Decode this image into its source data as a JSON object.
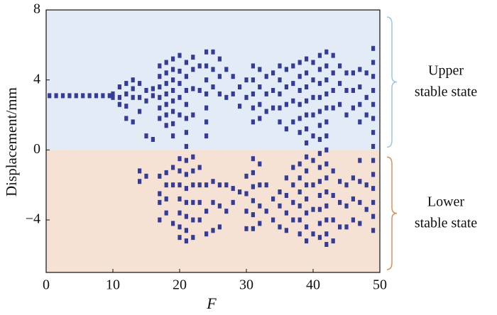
{
  "chart_data": {
    "type": "scatter",
    "xlabel": "F",
    "ylabel": "Displacement/mm",
    "xlim": [
      0,
      50
    ],
    "ylim": [
      -7,
      8
    ],
    "xticks": [
      0,
      10,
      20,
      30,
      40,
      50
    ],
    "yticks": [
      8,
      4,
      0,
      {
        "value": -4,
        "label": "−4"
      }
    ],
    "grid": false,
    "color": "#343c96",
    "upper_region_color": "#e3ebf6",
    "lower_region_color": "#f6e1d5",
    "annotations": [
      {
        "lines": [
          "Upper",
          "stable state"
        ],
        "color": "#9cc6e6"
      },
      {
        "lines": [
          "Lower",
          "stable state"
        ],
        "color": "#d9905e"
      }
    ],
    "x": [
      0.5,
      1.5,
      2.5,
      3.5,
      4.5,
      5.5,
      6.5,
      7.5,
      8.5,
      9.5,
      10,
      10,
      11,
      11,
      11,
      12,
      12,
      12,
      12,
      13,
      13,
      13,
      13,
      14,
      14,
      14,
      14,
      14,
      15,
      15,
      15,
      15,
      16,
      16,
      16,
      17,
      17,
      17,
      17,
      17,
      17,
      17,
      17,
      17,
      17,
      18,
      18,
      18,
      18,
      18,
      18,
      18,
      18,
      18,
      18,
      18,
      19,
      19,
      19,
      19,
      19,
      19,
      19,
      19,
      19,
      19,
      19,
      20,
      20,
      20,
      20,
      20,
      20,
      20,
      20,
      20,
      20,
      20,
      20,
      21,
      21,
      21,
      21,
      21,
      21,
      21,
      21,
      21,
      21,
      21,
      21,
      21,
      21,
      22,
      22,
      22,
      22,
      22,
      22,
      22,
      22,
      22,
      22,
      23,
      23,
      23,
      23,
      23,
      23,
      24,
      24,
      24,
      24,
      24,
      24,
      24,
      24,
      24,
      24,
      25,
      25,
      25,
      25,
      25,
      25,
      26,
      26,
      26,
      26,
      26,
      26,
      27,
      27,
      27,
      27,
      28,
      28,
      28,
      28,
      29,
      29,
      29,
      30,
      30,
      30,
      30,
      30,
      30,
      31,
      31,
      31,
      31,
      31,
      31,
      31,
      31,
      31,
      31,
      31,
      32,
      32,
      32,
      32,
      32,
      32,
      32,
      32,
      33,
      33,
      33,
      33,
      33,
      34,
      34,
      34,
      34,
      34,
      35,
      35,
      35,
      35,
      35,
      35,
      35,
      35,
      36,
      36,
      36,
      36,
      36,
      36,
      36,
      36,
      37,
      37,
      37,
      37,
      37,
      37,
      37,
      37,
      38,
      38,
      38,
      38,
      38,
      38,
      38,
      38,
      38,
      38,
      38,
      38,
      39,
      39,
      39,
      39,
      39,
      39,
      39,
      39,
      39,
      39,
      39,
      39,
      39,
      39,
      40,
      40,
      40,
      40,
      40,
      40,
      40,
      40,
      40,
      41,
      41,
      41,
      41,
      41,
      41,
      41,
      41,
      41,
      41,
      41,
      41,
      41,
      41,
      42,
      42,
      42,
      42,
      42,
      42,
      42,
      42,
      42,
      42,
      42,
      42,
      42,
      42,
      42,
      43,
      43,
      43,
      43,
      43,
      43,
      43,
      43,
      44,
      44,
      44,
      44,
      44,
      44,
      45,
      45,
      45,
      45,
      45,
      45,
      46,
      46,
      46,
      46,
      46,
      46,
      47,
      47,
      47,
      47,
      47,
      47,
      47,
      47,
      48,
      48,
      48,
      48,
      48,
      49,
      49,
      49,
      49,
      49,
      49,
      49,
      49,
      49,
      49,
      49,
      49,
      49,
      49
    ],
    "values": [
      3.1,
      3.1,
      3.1,
      3.1,
      3.1,
      3.1,
      3.1,
      3.1,
      3.1,
      3.1,
      3.2,
      3.0,
      3.6,
      3.0,
      2.6,
      3.8,
      3.2,
      2.5,
      1.8,
      4.0,
      3.5,
      3.0,
      1.6,
      3.8,
      3.0,
      2.2,
      -1.2,
      -1.8,
      3.4,
      2.8,
      0.8,
      -1.5,
      3.5,
      3.1,
      0.6,
      4.8,
      4.2,
      3.6,
      3.0,
      2.4,
      1.8,
      -1.5,
      -2.5,
      -3.0,
      -4.0,
      5.0,
      4.4,
      3.8,
      3.2,
      2.6,
      2.0,
      1.4,
      -1.3,
      -2.0,
      -2.8,
      -3.6,
      5.2,
      4.6,
      4.0,
      3.4,
      2.8,
      2.2,
      1.5,
      0.8,
      -1.0,
      -2.0,
      -4.2,
      5.4,
      4.5,
      3.8,
      3.0,
      2.0,
      -0.5,
      -1.2,
      -2.0,
      -2.8,
      -3.6,
      -4.4,
      -5.0,
      5.0,
      4.2,
      3.4,
      2.6,
      1.8,
      1.0,
      0.2,
      -0.6,
      -1.4,
      -2.2,
      -3.0,
      -3.8,
      -4.6,
      -5.2,
      5.3,
      4.6,
      3.5,
      2.0,
      -0.4,
      -1.2,
      -2.0,
      -3.0,
      -4.0,
      -5.0,
      4.8,
      3.4,
      -1.0,
      -2.0,
      -3.0,
      -4.0,
      5.6,
      4.8,
      4.0,
      3.2,
      2.4,
      1.6,
      0.8,
      -2.0,
      -3.5,
      -4.8,
      5.6,
      4.6,
      3.6,
      -1.8,
      -3.0,
      -4.6,
      5.2,
      4.2,
      3.2,
      -2.0,
      -3.2,
      -4.4,
      4.6,
      3.0,
      -2.0,
      -3.5,
      4.2,
      3.2,
      -2.2,
      -3.0,
      3.6,
      2.5,
      -2.4,
      4.0,
      3.0,
      -1.5,
      -2.5,
      -3.5,
      -4.5,
      4.8,
      4.0,
      3.2,
      2.4,
      1.6,
      -0.5,
      -1.3,
      -2.1,
      -2.9,
      -3.7,
      -4.5,
      4.6,
      3.6,
      2.6,
      1.8,
      -0.8,
      -2.0,
      -3.2,
      -4.2,
      4.2,
      3.2,
      2.2,
      -2.0,
      -3.5,
      4.4,
      3.4,
      2.4,
      -2.8,
      -4.0,
      4.8,
      4.0,
      3.2,
      2.4,
      1.6,
      -2.4,
      -3.2,
      -4.4,
      4.6,
      3.6,
      2.6,
      1.2,
      -1.6,
      -2.6,
      -3.6,
      -4.6,
      4.8,
      3.8,
      2.8,
      1.6,
      -1.0,
      -2.0,
      -3.0,
      -4.0,
      5.0,
      4.2,
      3.4,
      2.6,
      1.8,
      1.0,
      -0.8,
      -1.6,
      -2.4,
      -3.2,
      -4.0,
      -4.8,
      5.2,
      4.4,
      3.6,
      2.8,
      2.0,
      1.2,
      0.4,
      -0.4,
      -1.2,
      -2.0,
      -2.8,
      -3.6,
      -4.4,
      -5.2,
      5.0,
      4.0,
      3.0,
      2.0,
      0.8,
      -0.6,
      -2.0,
      -3.4,
      -4.8,
      5.4,
      4.6,
      3.8,
      3.0,
      2.2,
      1.4,
      0.6,
      -0.2,
      -1.0,
      -1.8,
      -2.6,
      -3.4,
      -4.2,
      -5.0,
      5.6,
      4.8,
      4.0,
      3.2,
      2.4,
      1.6,
      0.8,
      0.0,
      -0.8,
      -1.6,
      -2.4,
      -3.2,
      -4.0,
      -4.8,
      -5.4,
      5.4,
      4.4,
      3.4,
      2.4,
      -1.2,
      -2.6,
      -4.0,
      -5.2,
      4.8,
      3.8,
      2.6,
      -1.8,
      -3.0,
      -4.4,
      4.4,
      3.4,
      2.0,
      -2.0,
      -3.2,
      -4.4,
      4.4,
      3.4,
      2.4,
      -1.6,
      -2.8,
      -4.0,
      4.6,
      3.6,
      2.6,
      1.6,
      -0.6,
      -1.8,
      -3.0,
      -4.2,
      4.4,
      3.0,
      2.0,
      -2.0,
      -3.4,
      5.8,
      5.0,
      4.2,
      3.4,
      2.6,
      1.8,
      1.0,
      0.2,
      -0.6,
      -1.4,
      -2.2,
      -3.0,
      -3.8,
      -4.6
    ]
  }
}
